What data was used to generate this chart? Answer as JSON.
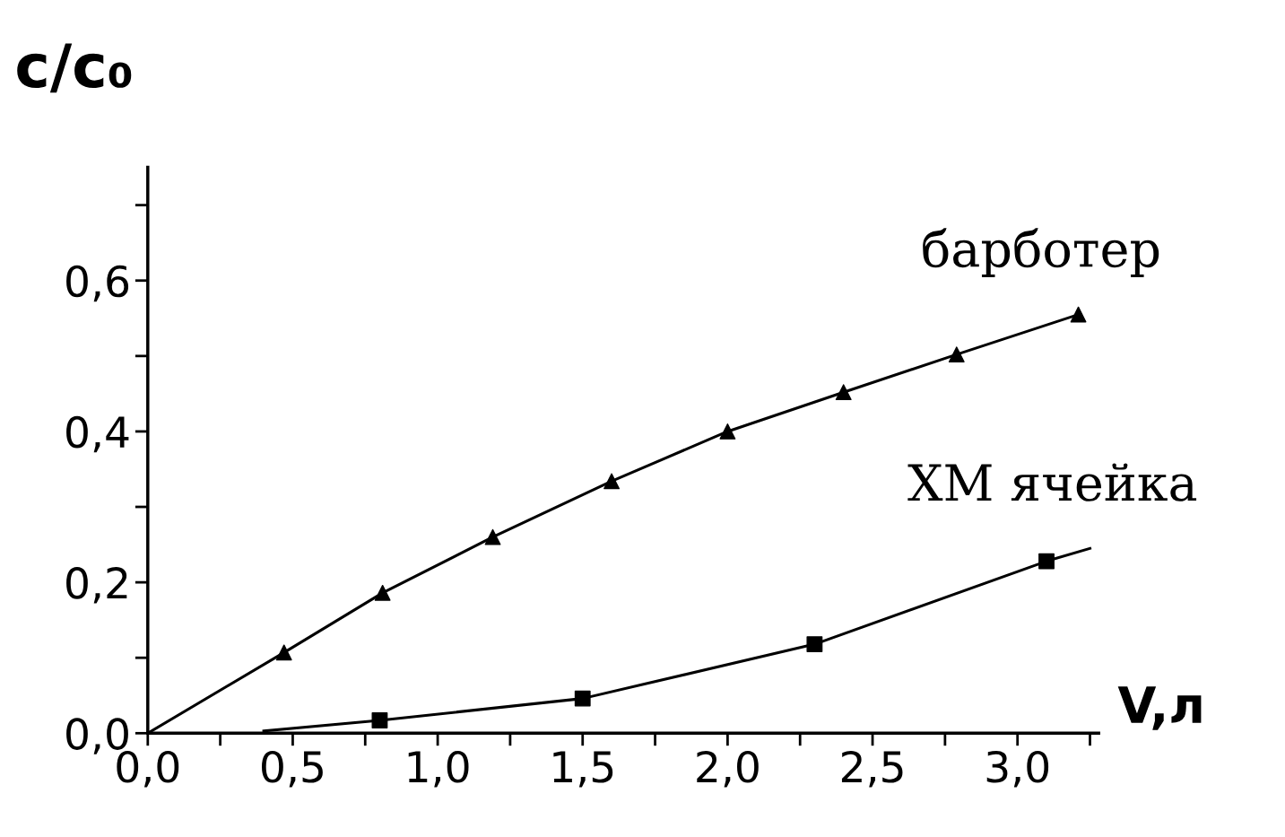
{
  "chart_data": {
    "type": "line",
    "xlabel": "V,л",
    "ylabel": "c/c₀",
    "xlim": [
      0,
      3.28
    ],
    "ylim": [
      0,
      0.75
    ],
    "xticks": [
      {
        "value": 0,
        "label": "0,0"
      },
      {
        "value": 0.25,
        "label": null
      },
      {
        "value": 0.5,
        "label": "0,5"
      },
      {
        "value": 0.75,
        "label": null
      },
      {
        "value": 1.0,
        "label": "1,0"
      },
      {
        "value": 1.25,
        "label": null
      },
      {
        "value": 1.5,
        "label": "1,5"
      },
      {
        "value": 1.75,
        "label": null
      },
      {
        "value": 2.0,
        "label": "2,0"
      },
      {
        "value": 2.25,
        "label": null
      },
      {
        "value": 2.5,
        "label": "2,5"
      },
      {
        "value": 2.75,
        "label": null
      },
      {
        "value": 3.0,
        "label": "3,0"
      },
      {
        "value": 3.25,
        "label": null
      }
    ],
    "yticks": [
      {
        "value": 0,
        "label": "0,0"
      },
      {
        "value": 0.1,
        "label": null
      },
      {
        "value": 0.2,
        "label": "0,2"
      },
      {
        "value": 0.3,
        "label": null
      },
      {
        "value": 0.4,
        "label": "0,4"
      },
      {
        "value": 0.5,
        "label": null
      },
      {
        "value": 0.6,
        "label": "0,6"
      },
      {
        "value": 0.7,
        "label": null
      }
    ],
    "grid": false,
    "legend": false,
    "series": [
      {
        "name": "барботер",
        "marker": "none",
        "color": "#000000",
        "x": [
          0,
          0.47,
          0.81,
          1.19,
          1.6,
          2.0,
          2.4,
          2.79,
          3.21
        ],
        "values": [
          0,
          0.107,
          0.186,
          0.26,
          0.334,
          0.4,
          0.452,
          0.502,
          0.555
        ]
      },
      {
        "type": "scatter",
        "marker": "triangle",
        "color": "#000000",
        "x": [
          0.47,
          0.81,
          1.19,
          1.6,
          2.0,
          2.4,
          2.79,
          3.21
        ],
        "values": [
          0.107,
          0.186,
          0.26,
          0.334,
          0.4,
          0.452,
          0.502,
          0.555
        ]
      },
      {
        "name": "ХМ ячейка",
        "marker": "none",
        "color": "#000000",
        "x": [
          0.4,
          0.8,
          1.5,
          2.3,
          3.1,
          3.25
        ],
        "values": [
          0.003,
          0.017,
          0.046,
          0.118,
          0.228,
          0.245
        ]
      },
      {
        "type": "scatter",
        "marker": "square",
        "color": "#000000",
        "x": [
          0.8,
          1.5,
          2.3,
          3.1
        ],
        "values": [
          0.017,
          0.046,
          0.118,
          0.228
        ]
      }
    ]
  }
}
